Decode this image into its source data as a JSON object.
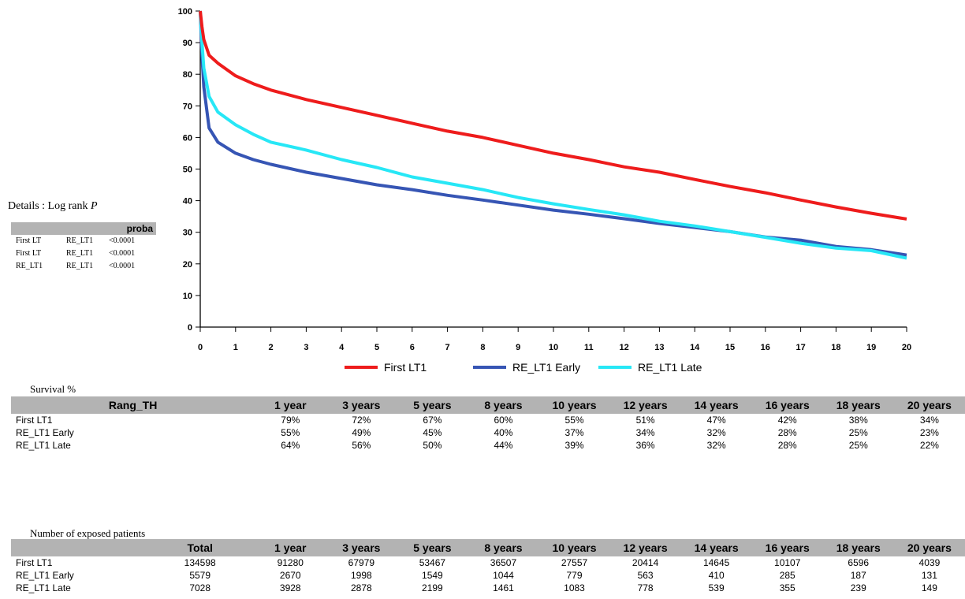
{
  "colors": {
    "first_lt1": "#ee1c1c",
    "re_lt1_early": "#3655b4",
    "re_lt1_late": "#27e7f6",
    "header_gray": "#b3b3b3"
  },
  "chart_data": {
    "type": "line",
    "title": "",
    "xlabel": "",
    "ylabel": "",
    "xlim": [
      0,
      20
    ],
    "ylim": [
      0,
      100
    ],
    "x_ticks": [
      "0",
      "1",
      "2",
      "3",
      "4",
      "5",
      "6",
      "7",
      "8",
      "9",
      "10",
      "11",
      "12",
      "13",
      "14",
      "15",
      "16",
      "17",
      "18",
      "19",
      "20"
    ],
    "y_ticks": [
      "0",
      "10",
      "20",
      "30",
      "40",
      "50",
      "60",
      "70",
      "80",
      "90",
      "100"
    ],
    "grid": false,
    "legend_position": "bottom",
    "series": [
      {
        "name": "First LT1",
        "color": "#ee1c1c",
        "points": [
          [
            0,
            100
          ],
          [
            0.05,
            95
          ],
          [
            0.1,
            91
          ],
          [
            0.25,
            86
          ],
          [
            0.5,
            83.5
          ],
          [
            1,
            79.5
          ],
          [
            1.5,
            77
          ],
          [
            2,
            75
          ],
          [
            3,
            72
          ],
          [
            4,
            69.5
          ],
          [
            5,
            67
          ],
          [
            6,
            64.5
          ],
          [
            7,
            62
          ],
          [
            8,
            60
          ],
          [
            9,
            57.5
          ],
          [
            10,
            55
          ],
          [
            11,
            53
          ],
          [
            12,
            50.7
          ],
          [
            13,
            49
          ],
          [
            14,
            46.7
          ],
          [
            15,
            44.5
          ],
          [
            16,
            42.5
          ],
          [
            17,
            40.2
          ],
          [
            18,
            38
          ],
          [
            19,
            36
          ],
          [
            20,
            34.2
          ]
        ]
      },
      {
        "name": "RE_LT1 Early",
        "color": "#3655b4",
        "points": [
          [
            0,
            100
          ],
          [
            0.05,
            86
          ],
          [
            0.1,
            76
          ],
          [
            0.25,
            63
          ],
          [
            0.5,
            58.5
          ],
          [
            1,
            55
          ],
          [
            1.5,
            53
          ],
          [
            2,
            51.5
          ],
          [
            3,
            49
          ],
          [
            4,
            47
          ],
          [
            5,
            45
          ],
          [
            6,
            43.5
          ],
          [
            7,
            41.7
          ],
          [
            8,
            40.2
          ],
          [
            9,
            38.6
          ],
          [
            10,
            37
          ],
          [
            11,
            35.7
          ],
          [
            12,
            34.3
          ],
          [
            13,
            32.8
          ],
          [
            14,
            31.5
          ],
          [
            15,
            30.2
          ],
          [
            16,
            28.5
          ],
          [
            17,
            27.5
          ],
          [
            18,
            25.5
          ],
          [
            19,
            24.5
          ],
          [
            20,
            22.8
          ]
        ]
      },
      {
        "name": "RE_LT1 Late",
        "color": "#27e7f6",
        "points": [
          [
            0,
            100
          ],
          [
            0.05,
            90
          ],
          [
            0.1,
            82
          ],
          [
            0.25,
            73
          ],
          [
            0.5,
            68
          ],
          [
            1,
            64
          ],
          [
            1.5,
            61
          ],
          [
            2,
            58.5
          ],
          [
            3,
            56
          ],
          [
            4,
            53
          ],
          [
            5,
            50.5
          ],
          [
            6,
            47.5
          ],
          [
            7,
            45.5
          ],
          [
            8,
            43.5
          ],
          [
            9,
            41
          ],
          [
            10,
            39
          ],
          [
            11,
            37.2
          ],
          [
            12,
            35.5
          ],
          [
            13,
            33.5
          ],
          [
            14,
            32
          ],
          [
            15,
            30.2
          ],
          [
            16,
            28.4
          ],
          [
            17,
            26.5
          ],
          [
            18,
            25
          ],
          [
            19,
            24.2
          ],
          [
            20,
            21.8
          ]
        ]
      }
    ]
  },
  "details": {
    "title": "Details : Log rank",
    "p_symbol": "P",
    "header": "proba",
    "rows": [
      {
        "a": "First LT",
        "b": "RE_LT1",
        "p": "<0.0001"
      },
      {
        "a": "First LT",
        "b": "RE_LT1",
        "p": "<0.0001"
      },
      {
        "a": "RE_LT1",
        "b": "RE_LT1",
        "p": "<0.0001"
      }
    ]
  },
  "survival": {
    "title": "Survival %",
    "headers": [
      "Rang_TH",
      "1 year",
      "3 years",
      "5 years",
      "8 years",
      "10 years",
      "12 years",
      "14 years",
      "16 years",
      "18 years",
      "20 years"
    ],
    "rows": [
      [
        "First LT1",
        "79%",
        "72%",
        "67%",
        "60%",
        "55%",
        "51%",
        "47%",
        "42%",
        "38%",
        "34%"
      ],
      [
        "RE_LT1 Early",
        "55%",
        "49%",
        "45%",
        "40%",
        "37%",
        "34%",
        "32%",
        "28%",
        "25%",
        "23%"
      ],
      [
        "RE_LT1 Late",
        "64%",
        "56%",
        "50%",
        "44%",
        "39%",
        "36%",
        "32%",
        "28%",
        "25%",
        "22%"
      ]
    ]
  },
  "exposed": {
    "title": "Number of exposed patients",
    "headers": [
      "",
      "Total",
      "1 year",
      "3 years",
      "5 years",
      "8 years",
      "10 years",
      "12 years",
      "14 years",
      "16 years",
      "18 years",
      "20 years"
    ],
    "rows": [
      [
        "First LT1",
        "134598",
        "91280",
        "67979",
        "53467",
        "36507",
        "27557",
        "20414",
        "14645",
        "10107",
        "6596",
        "4039"
      ],
      [
        "RE_LT1 Early",
        "5579",
        "2670",
        "1998",
        "1549",
        "1044",
        "779",
        "563",
        "410",
        "285",
        "187",
        "131"
      ],
      [
        "RE_LT1 Late",
        "7028",
        "3928",
        "2878",
        "2199",
        "1461",
        "1083",
        "778",
        "539",
        "355",
        "239",
        "149"
      ]
    ]
  }
}
